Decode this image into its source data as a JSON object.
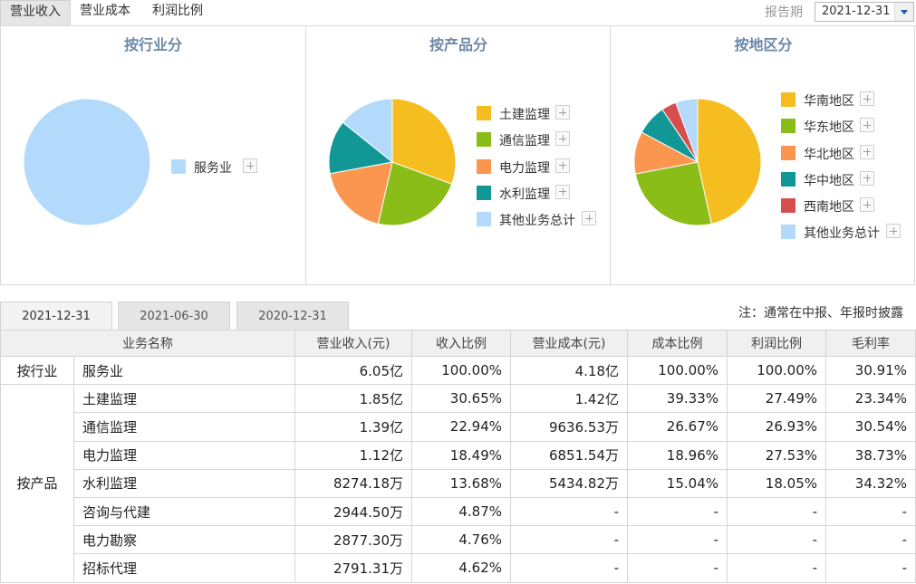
{
  "top_tabs": [
    "营业收入",
    "营业成本",
    "利润比例"
  ],
  "report": {
    "label": "报告期",
    "value": "2021-12-31"
  },
  "chart_data": [
    {
      "type": "pie",
      "title": "按行业分",
      "labels": [
        "服务业"
      ],
      "values": [
        100
      ],
      "colors": [
        "#b3dafa"
      ]
    },
    {
      "type": "pie",
      "title": "按产品分",
      "labels": [
        "土建监理",
        "通信监理",
        "电力监理",
        "水利监理",
        "其他业务总计"
      ],
      "values": [
        30.65,
        22.94,
        18.49,
        13.68,
        14.24
      ],
      "colors": [
        "#f5bd1f",
        "#8bbd18",
        "#fb9650",
        "#119896",
        "#b3dafa"
      ]
    },
    {
      "type": "pie",
      "title": "按地区分",
      "labels": [
        "华南地区",
        "华东地区",
        "华北地区",
        "华中地区",
        "西南地区",
        "其他业务总计"
      ],
      "values": [
        46.5,
        25.5,
        10.8,
        7.8,
        3.8,
        5.6
      ],
      "colors": [
        "#f5bd1f",
        "#8bbd18",
        "#fb9650",
        "#119896",
        "#d64f4f",
        "#b3dafa"
      ]
    }
  ],
  "date_tabs": [
    "2021-12-31",
    "2021-06-30",
    "2020-12-31"
  ],
  "note": "注：通常在中报、年报时披露",
  "table": {
    "headers": [
      "业务名称",
      "营业收入(元)",
      "收入比例",
      "营业成本(元)",
      "成本比例",
      "利润比例",
      "毛利率"
    ],
    "groups": [
      {
        "label": "按行业",
        "rows": [
          [
            "服务业",
            "6.05亿",
            "100.00%",
            "4.18亿",
            "100.00%",
            "100.00%",
            "30.91%"
          ]
        ]
      },
      {
        "label": "按产品",
        "rows": [
          [
            "土建监理",
            "1.85亿",
            "30.65%",
            "1.42亿",
            "39.33%",
            "27.49%",
            "23.34%"
          ],
          [
            "通信监理",
            "1.39亿",
            "22.94%",
            "9636.53万",
            "26.67%",
            "26.93%",
            "30.54%"
          ],
          [
            "电力监理",
            "1.12亿",
            "18.49%",
            "6851.54万",
            "18.96%",
            "27.53%",
            "38.73%"
          ],
          [
            "水利监理",
            "8274.18万",
            "13.68%",
            "5434.82万",
            "15.04%",
            "18.05%",
            "34.32%"
          ],
          [
            "咨询与代建",
            "2944.50万",
            "4.87%",
            "-",
            "-",
            "-",
            "-"
          ],
          [
            "电力勘察",
            "2877.30万",
            "4.76%",
            "-",
            "-",
            "-",
            "-"
          ],
          [
            "招标代理",
            "2791.31万",
            "4.62%",
            "-",
            "-",
            "-",
            "-"
          ]
        ]
      }
    ]
  }
}
